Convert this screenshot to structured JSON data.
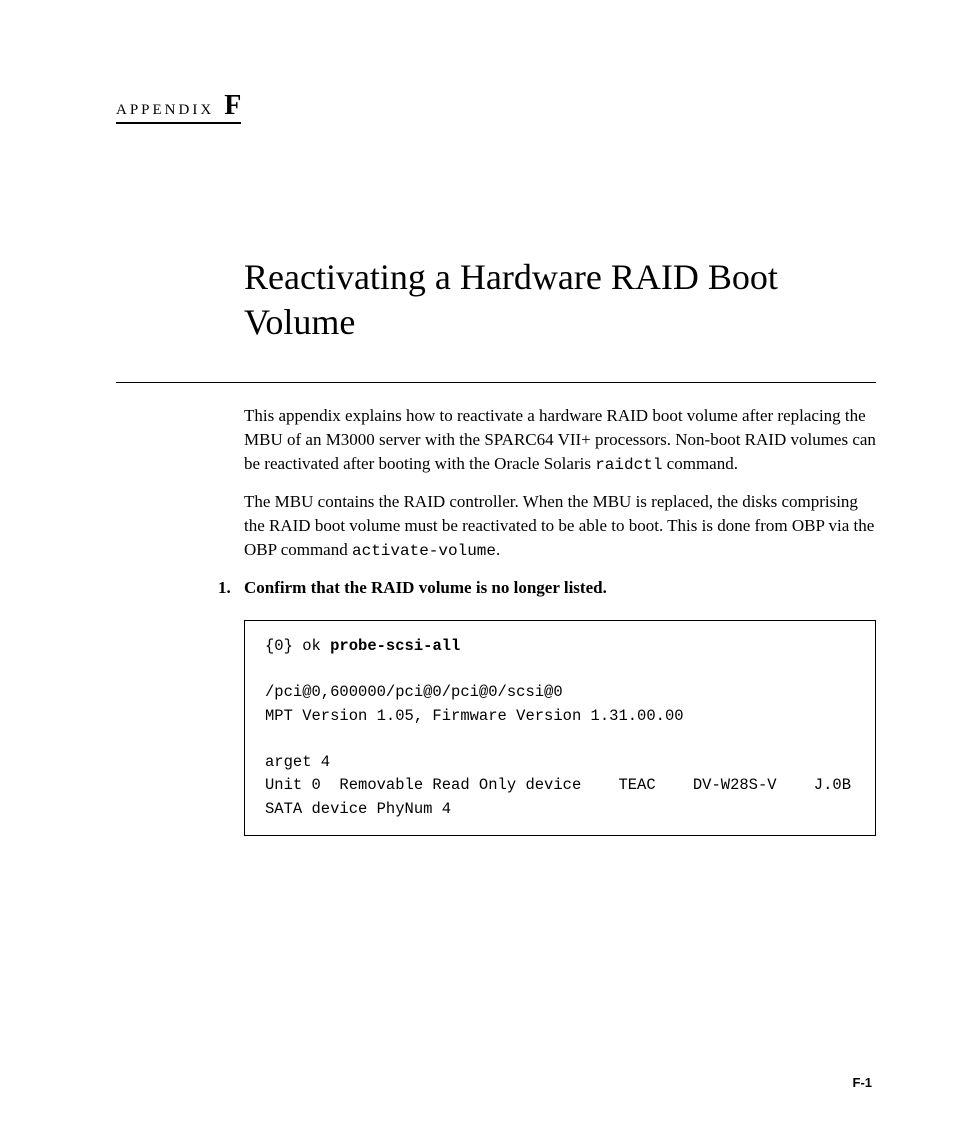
{
  "appendix": {
    "label": "APPENDIX",
    "letter": "F"
  },
  "title": "Reactivating a Hardware RAID Boot Volume",
  "paragraphs": {
    "p1_a": "This appendix explains how to reactivate a hardware RAID boot volume after replacing the MBU of an M3000 server with the SPARC64 VII+ processors. Non-boot RAID volumes can be reactivated after booting with the Oracle Solaris ",
    "p1_code": "raidctl",
    "p1_b": " command.",
    "p2_a": "The MBU contains the RAID controller. When the MBU is replaced, the disks comprising the RAID boot volume must be reactivated to be able to boot. This is done from OBP via the OBP command ",
    "p2_code": "activate-volume",
    "p2_b": "."
  },
  "step": {
    "number": "1.",
    "text": "Confirm that the RAID volume is no longer listed."
  },
  "codebox": {
    "line1_a": "{0} ok ",
    "line1_b": "probe-scsi-all",
    "blank1": "",
    "line2": "/pci@0,600000/pci@0/pci@0/scsi@0",
    "line3": "MPT Version 1.05, Firmware Version 1.31.00.00",
    "blank2": "",
    "line4": "arget 4",
    "line5": "Unit 0  Removable Read Only device    TEAC    DV-W28S-V    J.0B",
    "line6": "SATA device PhyNum 4"
  },
  "pageNumber": "F-1",
  "style": {
    "body_fontsize": 17,
    "title_fontsize": 36,
    "mono_fontsize": 15.5,
    "text_color": "#000000",
    "background_color": "#ffffff",
    "border_color": "#000000"
  }
}
